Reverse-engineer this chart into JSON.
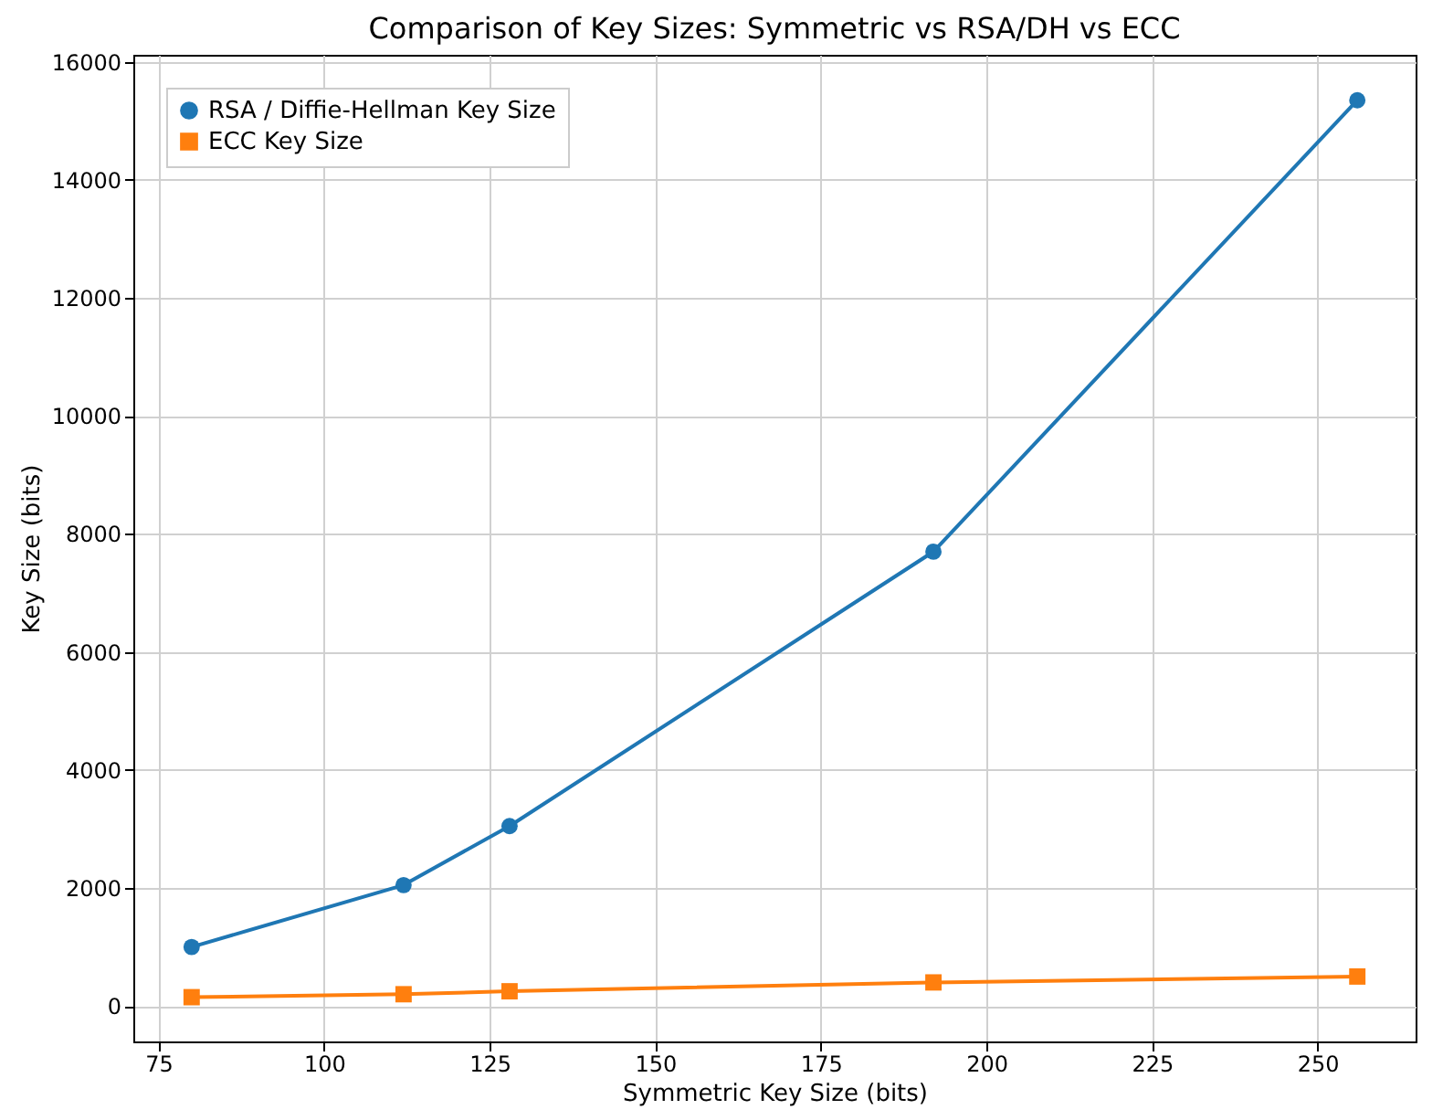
{
  "chart_data": {
    "type": "line",
    "title": "Comparison of Key Sizes: Symmetric vs RSA/DH vs ECC",
    "xlabel": "Symmetric Key Size (bits)",
    "ylabel": "Key Size (bits)",
    "x": [
      80,
      112,
      128,
      192,
      256
    ],
    "series": [
      {
        "name": "RSA / Diffie-Hellman Key Size",
        "color": "#1f77b4",
        "marker": "circle",
        "values": [
          1000,
          2050,
          3050,
          7700,
          15350
        ]
      },
      {
        "name": "ECC Key Size",
        "color": "#ff7f0e",
        "marker": "square",
        "values": [
          150,
          200,
          250,
          400,
          500
        ]
      }
    ],
    "xlim": [
      71.2,
      264.8
    ],
    "xticks": [
      75,
      100,
      125,
      150,
      175,
      200,
      225,
      250
    ],
    "ylim": [
      -600,
      16120
    ],
    "yticks": [
      0,
      2000,
      4000,
      6000,
      8000,
      10000,
      12000,
      14000,
      16000
    ],
    "grid": true,
    "legend": "top left"
  }
}
